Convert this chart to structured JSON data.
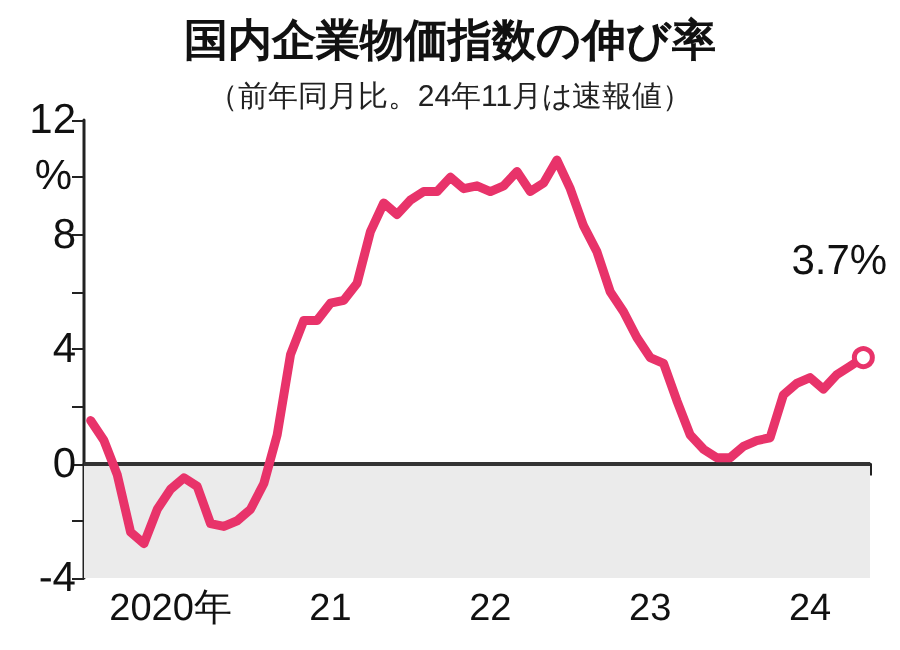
{
  "chart_data": {
    "type": "line",
    "title": "国内企業物価指数の伸び率",
    "subtitle": "（前年同月比。24年11月は速報値）",
    "ylabel": "%",
    "categories": [
      null,
      null,
      null,
      null,
      null,
      null,
      "2020年",
      null,
      null,
      null,
      null,
      null,
      null,
      null,
      null,
      null,
      null,
      null,
      "21",
      null,
      null,
      null,
      null,
      null,
      null,
      null,
      null,
      null,
      null,
      null,
      "22",
      null,
      null,
      null,
      null,
      null,
      null,
      null,
      null,
      null,
      null,
      null,
      "23",
      null,
      null,
      null,
      null,
      null,
      null,
      null,
      null,
      null,
      null,
      null,
      "24",
      null,
      null,
      null,
      null
    ],
    "series": [
      {
        "color": "#e8336a",
        "values": [
          1.5,
          0.8,
          -0.4,
          -2.4,
          -2.8,
          -1.6,
          -0.9,
          -0.5,
          -0.8,
          -2.1,
          -2.2,
          -2.0,
          -1.6,
          -0.7,
          1.0,
          3.8,
          5.0,
          5.0,
          5.6,
          5.7,
          6.3,
          8.1,
          9.1,
          8.7,
          9.2,
          9.5,
          9.5,
          10.0,
          9.6,
          9.7,
          9.5,
          9.7,
          10.2,
          9.5,
          9.8,
          10.6,
          9.6,
          8.3,
          7.4,
          6.0,
          5.3,
          4.4,
          3.7,
          3.5,
          2.2,
          1.0,
          0.5,
          0.2,
          0.2,
          0.6,
          0.8,
          0.9,
          2.4,
          2.8,
          3.0,
          2.6,
          3.1,
          3.4,
          3.7
        ],
        "value_labels": [
          null,
          null,
          null,
          null,
          null,
          null,
          null,
          null,
          null,
          null,
          null,
          null,
          null,
          null,
          null,
          null,
          null,
          null,
          null,
          null,
          null,
          null,
          null,
          null,
          null,
          null,
          null,
          null,
          null,
          null,
          null,
          null,
          null,
          null,
          null,
          null,
          null,
          null,
          null,
          null,
          null,
          null,
          null,
          null,
          null,
          null,
          null,
          null,
          null,
          null,
          null,
          null,
          null,
          null,
          null,
          null,
          null,
          null,
          "3.7%"
        ]
      }
    ],
    "ylim": [
      -4,
      12
    ],
    "yticks": [
      -4,
      {
        "value": -2,
        "label": null
      },
      0,
      {
        "value": 2,
        "label": null
      },
      4,
      {
        "value": 6,
        "label": null
      },
      8,
      {
        "value": 10,
        "label": null
      },
      12
    ],
    "bands": [
      {
        "axis": "y",
        "from": -4,
        "to": 0,
        "color": "#ebebeb"
      }
    ],
    "ref_lines": [
      {
        "axis": "y",
        "value": 0,
        "color": "#333333"
      }
    ],
    "grid": false
  }
}
